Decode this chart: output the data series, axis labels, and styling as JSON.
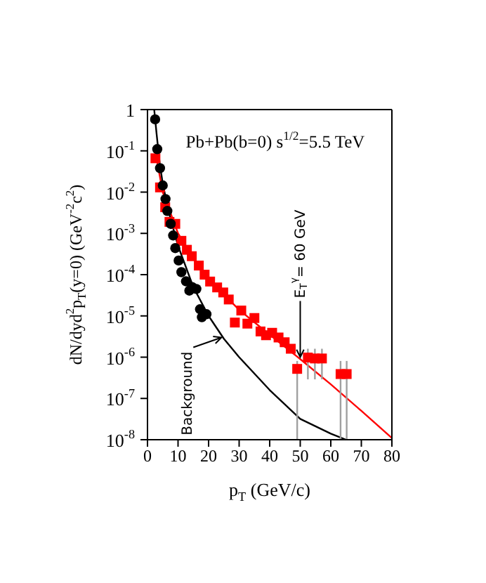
{
  "chart_data": {
    "type": "scatter",
    "xlabel": "p$_{T}$ (GeV/c)",
    "ylabel": "dN/dyd$^{2}$p$_{T}$(y=0) (GeV$^{-2}$c$^{2}$)",
    "xlim": [
      0,
      80
    ],
    "xticks": [
      0,
      10,
      20,
      30,
      40,
      50,
      60,
      70,
      80
    ],
    "ylim": [
      1e-08,
      1
    ],
    "yticks": [
      {
        "value": 1e-08,
        "label": "10$^{-8}$"
      },
      {
        "value": 1e-07,
        "label": "10$^{-7}$"
      },
      {
        "value": 1e-06,
        "label": "10$^{-6}$"
      },
      {
        "value": 1e-05,
        "label": "10$^{-5}$"
      },
      {
        "value": 0.0001,
        "label": "10$^{-4}$"
      },
      {
        "value": 0.001,
        "label": "10$^{-3}$"
      },
      {
        "value": 0.01,
        "label": "10$^{-2}$"
      },
      {
        "value": 0.1,
        "label": "10$^{-1}$"
      },
      1
    ],
    "log": "y",
    "grid": false,
    "series": [
      {
        "type": "line",
        "color": "#ff0000",
        "marker": "none",
        "line_style": "solid",
        "x": [
          2.5,
          5,
          10,
          15,
          20,
          30,
          40,
          50,
          60,
          70,
          80
        ],
        "values": [
          0.1,
          0.01,
          0.001,
          0.00025,
          7.9e-05,
          1.4e-05,
          3.5e-06,
          9e-07,
          2.2e-07,
          5e-08,
          1.1e-08
        ]
      },
      {
        "type": "line",
        "color": "#000000",
        "marker": "none",
        "line_style": "solid",
        "x": [
          2.2,
          3,
          4,
          5,
          7,
          10,
          15,
          20,
          25,
          30,
          40,
          50,
          60,
          65
        ],
        "values": [
          1,
          0.25,
          0.05,
          0.016,
          0.0032,
          0.0005,
          5e-05,
          1e-05,
          2.8e-06,
          1e-06,
          1.6e-07,
          3.2e-08,
          1.4e-08,
          1e-08
        ]
      },
      {
        "color": "#ff0000",
        "marker": "square",
        "x": [
          2.6,
          4.1,
          5.8,
          7.2,
          9.1,
          11.1,
          12.9,
          14.5,
          16.8,
          18.7,
          20.5,
          22.8,
          24.8,
          26.6,
          28.6,
          30.7,
          32.7,
          35.0,
          37.0,
          38.8,
          40.8,
          42.9,
          44.9,
          46.9,
          49.0,
          52.5,
          54.8,
          57.1,
          63.2,
          65.2
        ],
        "values": [
          0.066,
          0.013,
          0.0043,
          0.0019,
          0.0017,
          0.00066,
          0.0004,
          0.00028,
          0.000166,
          0.0001,
          6.8e-05,
          4.9e-05,
          3.7e-05,
          2.5e-05,
          6.9e-06,
          1.35e-05,
          6.5e-06,
          8.9e-06,
          4.2e-06,
          3.4e-06,
          3.9e-06,
          3e-06,
          2.3e-06,
          1.6e-06,
          5.2e-07,
          9.8e-07,
          9.3e-07,
          9.3e-07,
          3.9e-07,
          3.9e-07
        ],
        "errors": [
          null,
          null,
          null,
          null,
          null,
          null,
          null,
          null,
          null,
          null,
          null,
          null,
          null,
          null,
          null,
          null,
          null,
          null,
          null,
          null,
          null,
          null,
          null,
          null,
          [
            1e-08,
            8.1e-07
          ],
          [
            2.9e-07,
            1.6e-06
          ],
          [
            2.9e-07,
            1.6e-06
          ],
          [
            2.9e-07,
            1.6e-06
          ],
          [
            1e-08,
            8.1e-07
          ],
          [
            1e-08,
            8.1e-07
          ]
        ]
      },
      {
        "color": "#000000",
        "marker": "circle",
        "x": [
          2.5,
          3.2,
          4.1,
          5.0,
          5.9,
          6.5,
          7.6,
          8.4,
          9.1,
          10.2,
          11.1,
          12.6,
          13.7,
          14.6,
          16.0,
          17.2,
          17.8,
          19.3
        ],
        "values": [
          0.58,
          0.11,
          0.038,
          0.0145,
          0.0068,
          0.0035,
          0.0017,
          0.00089,
          0.00044,
          0.00022,
          0.000115,
          6.9e-05,
          4.1e-05,
          5e-05,
          4.5e-05,
          1.45e-05,
          9.3e-06,
          1.1e-05
        ]
      }
    ],
    "annotations": [
      "Pb+Pb(b=0)  s$^{1/2}$=5.5 TeV",
      {
        "text": "Background",
        "x": 24.2,
        "y": 3e-06
      },
      {
        "text": "E$_{T}$$^{γ}$= 60 GeV",
        "x": 50,
        "y": 1e-06
      }
    ]
  }
}
